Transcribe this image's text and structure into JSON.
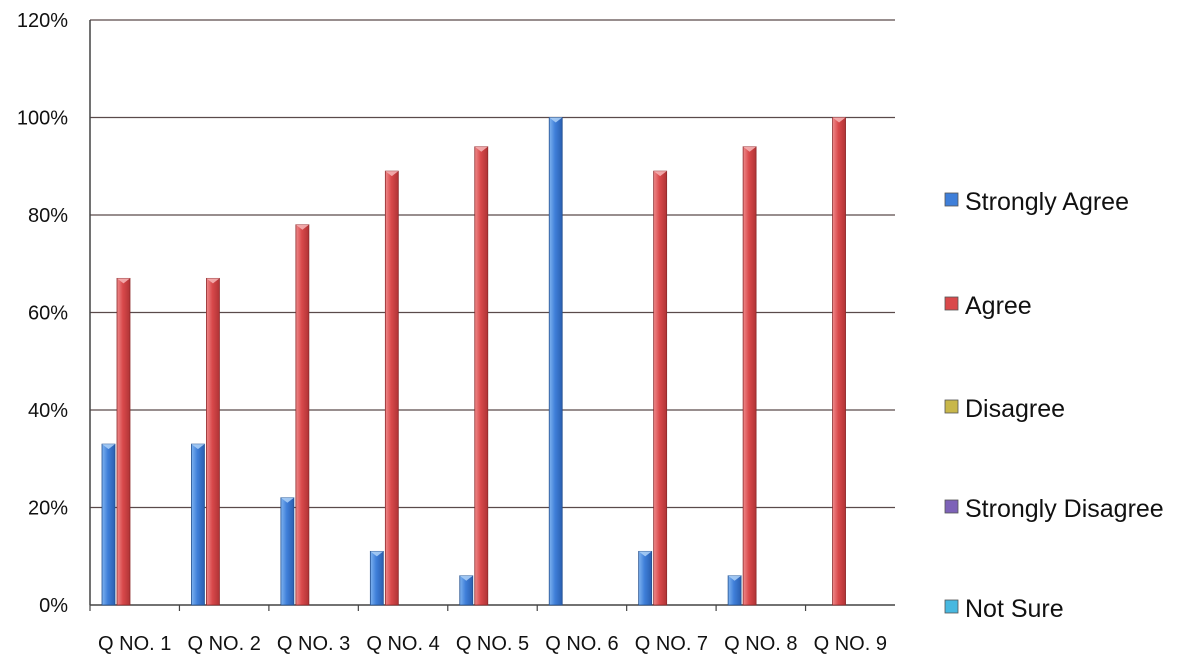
{
  "chart_data": {
    "type": "bar",
    "title": "",
    "xlabel": "",
    "ylabel": "",
    "ylim": [
      0,
      120
    ],
    "yticks": [
      "0%",
      "20%",
      "40%",
      "60%",
      "80%",
      "100%",
      "120%"
    ],
    "grid": true,
    "legend_position": "right",
    "categories": [
      "Q NO. 1",
      "Q NO. 2",
      "Q NO. 3",
      "Q NO. 4",
      "Q NO. 5",
      "Q NO. 6",
      "Q NO. 7",
      "Q NO. 8",
      "Q NO. 9"
    ],
    "series": [
      {
        "name": "Strongly Agree",
        "color": "#3f7fd9",
        "values": [
          33,
          33,
          22,
          11,
          6,
          100,
          11,
          6,
          0
        ]
      },
      {
        "name": "Agree",
        "color": "#d9494b",
        "values": [
          67,
          67,
          78,
          89,
          94,
          0,
          89,
          94,
          100
        ]
      },
      {
        "name": "Disagree",
        "color": "#c8b74a",
        "values": [
          0,
          0,
          0,
          0,
          0,
          0,
          0,
          0,
          0
        ]
      },
      {
        "name": "Strongly Disagree",
        "color": "#7d62b8",
        "values": [
          0,
          0,
          0,
          0,
          0,
          0,
          0,
          0,
          0
        ]
      },
      {
        "name": "Not Sure",
        "color": "#47b8e0",
        "values": [
          0,
          0,
          0,
          0,
          0,
          0,
          0,
          0,
          0
        ]
      }
    ]
  }
}
